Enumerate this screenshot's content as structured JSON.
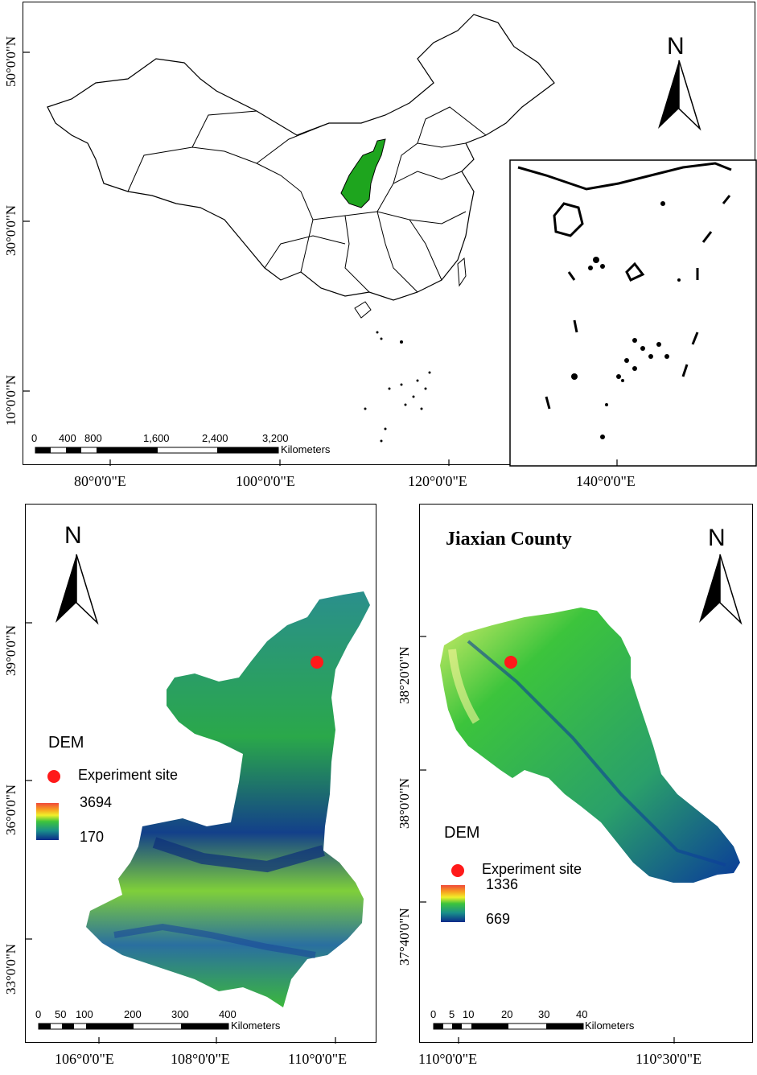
{
  "colors": {
    "shaanxi_fill": "#1ea51e",
    "site_red": "#ff1a1a"
  },
  "icons": [
    "north-arrow-icon",
    "red-dot-icon"
  ],
  "map_china": {
    "north_label": "N",
    "lat_labels": [
      "50°0'0\"N",
      "30°0'0\"N",
      "10°0'0\"N"
    ],
    "lon_labels": [
      "80°0'0\"E",
      "100°0'0\"E",
      "120°0'0\"E",
      "140°0'0\"E"
    ],
    "scale_numbers": [
      "0",
      "400",
      "800",
      "1,600",
      "2,400",
      "3,200"
    ],
    "scale_unit": "Kilometers"
  },
  "map_shaanxi": {
    "north_label": "N",
    "lat_labels": [
      "39°0'0\"N",
      "36°0'0\"N",
      "33°0'0\"N"
    ],
    "lon_labels": [
      "106°0'0\"E",
      "108°0'0\"E",
      "110°0'0\"E"
    ],
    "legend_title": "DEM",
    "legend_site": "Experiment site",
    "legend_max": "3694",
    "legend_min": "170",
    "scale_numbers": [
      "0",
      "50",
      "100",
      "200",
      "300",
      "400"
    ],
    "scale_unit": "Kilometers"
  },
  "map_jiaxian": {
    "title": "Jiaxian County",
    "north_label": "N",
    "lat_labels": [
      "38°20'0\"N",
      "38°0'0\"N",
      "37°40'0\"N"
    ],
    "lon_labels": [
      "110°0'0\"E",
      "110°30'0\"E"
    ],
    "legend_title": "DEM",
    "legend_site": "Experiment site",
    "legend_max": "1336",
    "legend_min": "669",
    "scale_numbers": [
      "0",
      "5",
      "10",
      "20",
      "30",
      "40"
    ],
    "scale_unit": "Kilometers"
  }
}
